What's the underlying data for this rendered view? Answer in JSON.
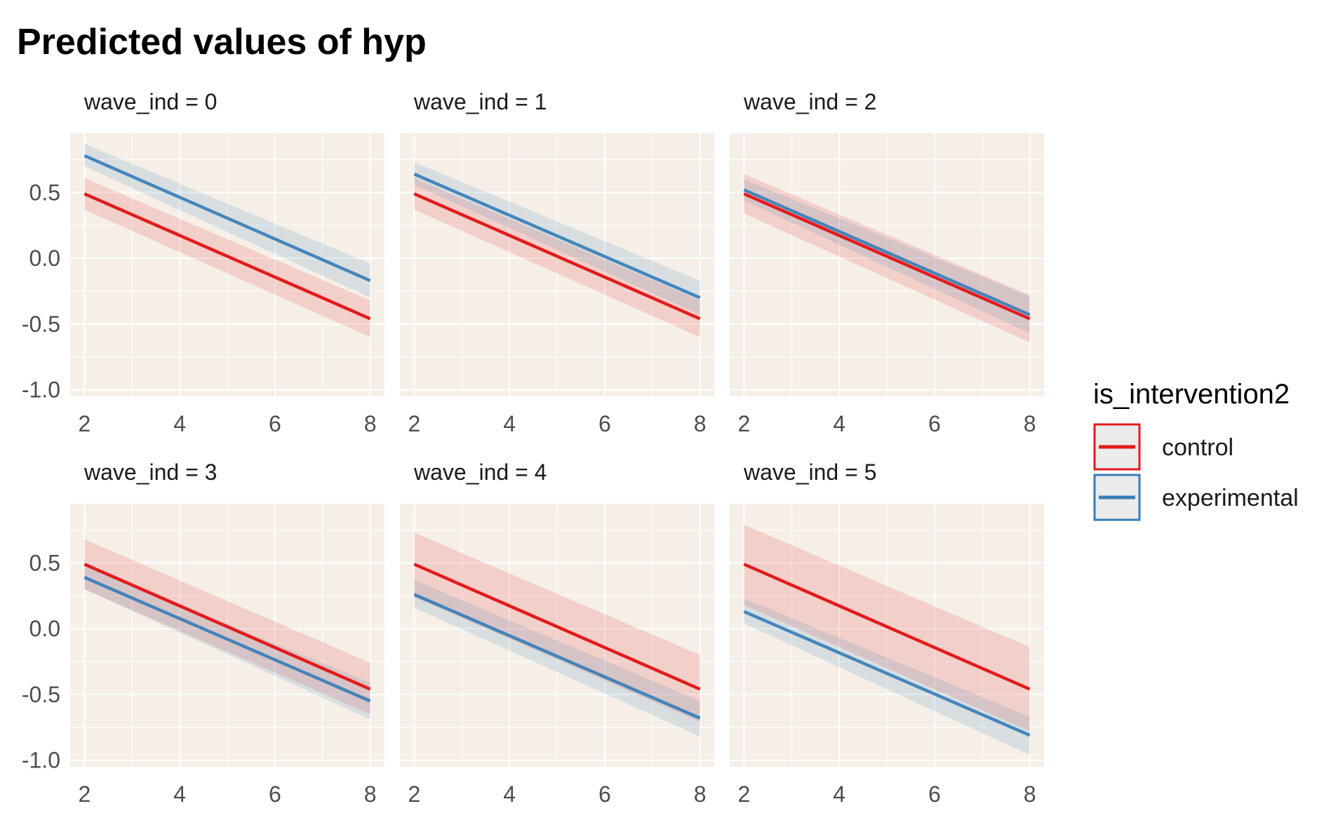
{
  "chart_data": {
    "type": "line",
    "title": "Predicted values of hyp",
    "xlabel": "",
    "ylabel": "",
    "xlim": [
      1.7,
      8.3
    ],
    "ylim": [
      -1.05,
      0.95
    ],
    "x_ticks": [
      2,
      4,
      6,
      8
    ],
    "y_ticks": [
      0.5,
      0.0,
      -0.5,
      -1.0
    ],
    "y_tick_labels": [
      "0.5",
      "0.0",
      "-0.5",
      "-1.0"
    ],
    "grid": true,
    "panel_background": "#f5efe8",
    "legend": {
      "title": "is_intervention2",
      "placement": "right",
      "entries": [
        "control",
        "experimental"
      ]
    },
    "colors": {
      "control": "#e41a1c",
      "experimental": "#377eb8"
    },
    "panels": [
      {
        "strip": "wave_ind = 0",
        "series": [
          {
            "name": "control",
            "x": [
              2,
              8
            ],
            "y": [
              0.49,
              -0.46
            ],
            "lower": [
              0.37,
              -0.6
            ],
            "upper": [
              0.61,
              -0.32
            ]
          },
          {
            "name": "experimental",
            "x": [
              2,
              8
            ],
            "y": [
              0.78,
              -0.17
            ],
            "lower": [
              0.7,
              -0.3
            ],
            "upper": [
              0.87,
              -0.04
            ]
          }
        ]
      },
      {
        "strip": "wave_ind = 1",
        "series": [
          {
            "name": "control",
            "x": [
              2,
              8
            ],
            "y": [
              0.49,
              -0.46
            ],
            "lower": [
              0.37,
              -0.6
            ],
            "upper": [
              0.61,
              -0.32
            ]
          },
          {
            "name": "experimental",
            "x": [
              2,
              8
            ],
            "y": [
              0.64,
              -0.3
            ],
            "lower": [
              0.56,
              -0.43
            ],
            "upper": [
              0.73,
              -0.17
            ]
          }
        ]
      },
      {
        "strip": "wave_ind = 2",
        "series": [
          {
            "name": "control",
            "x": [
              2,
              8
            ],
            "y": [
              0.49,
              -0.46
            ],
            "lower": [
              0.34,
              -0.64
            ],
            "upper": [
              0.64,
              -0.28
            ]
          },
          {
            "name": "experimental",
            "x": [
              2,
              8
            ],
            "y": [
              0.52,
              -0.43
            ],
            "lower": [
              0.44,
              -0.57
            ],
            "upper": [
              0.6,
              -0.29
            ]
          }
        ]
      },
      {
        "strip": "wave_ind = 3",
        "series": [
          {
            "name": "control",
            "x": [
              2,
              8
            ],
            "y": [
              0.49,
              -0.46
            ],
            "lower": [
              0.3,
              -0.65
            ],
            "upper": [
              0.68,
              -0.26
            ]
          },
          {
            "name": "experimental",
            "x": [
              2,
              8
            ],
            "y": [
              0.39,
              -0.55
            ],
            "lower": [
              0.3,
              -0.69
            ],
            "upper": [
              0.48,
              -0.41
            ]
          }
        ]
      },
      {
        "strip": "wave_ind = 4",
        "series": [
          {
            "name": "control",
            "x": [
              2,
              8
            ],
            "y": [
              0.49,
              -0.46
            ],
            "lower": [
              0.24,
              -0.71
            ],
            "upper": [
              0.73,
              -0.2
            ]
          },
          {
            "name": "experimental",
            "x": [
              2,
              8
            ],
            "y": [
              0.26,
              -0.68
            ],
            "lower": [
              0.16,
              -0.82
            ],
            "upper": [
              0.37,
              -0.55
            ]
          }
        ]
      },
      {
        "strip": "wave_ind = 5",
        "series": [
          {
            "name": "control",
            "x": [
              2,
              8
            ],
            "y": [
              0.49,
              -0.46
            ],
            "lower": [
              0.18,
              -0.78
            ],
            "upper": [
              0.79,
              -0.14
            ]
          },
          {
            "name": "experimental",
            "x": [
              2,
              8
            ],
            "y": [
              0.13,
              -0.81
            ],
            "lower": [
              0.04,
              -0.96
            ],
            "upper": [
              0.23,
              -0.67
            ]
          }
        ]
      }
    ]
  }
}
